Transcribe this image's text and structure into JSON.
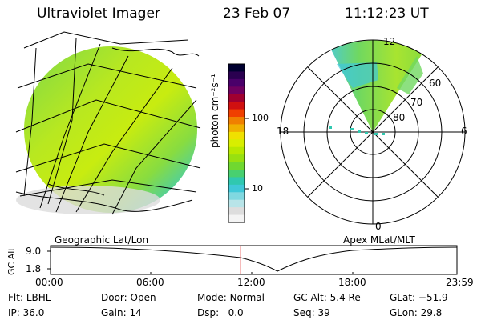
{
  "header": {
    "instrument": "Ultraviolet Imager",
    "date": "23 Feb 07",
    "time": "11:12:23 UT"
  },
  "colorbar": {
    "label": "photon cm⁻²s⁻¹",
    "ticks": [
      "100",
      "10"
    ],
    "colors": [
      "#000030",
      "#2a0050",
      "#4a006a",
      "#700060",
      "#a00030",
      "#d01010",
      "#f04000",
      "#f08000",
      "#f0b000",
      "#f0e000",
      "#d8ee00",
      "#b8e800",
      "#98e010",
      "#70d830",
      "#48d070",
      "#30c8b0",
      "#40c8d8",
      "#80d8e0",
      "#b8e4e8",
      "#dddddd",
      "#f4f4f4"
    ]
  },
  "left_panel": {
    "label": "Geographic Lat/Lon"
  },
  "polar_plot": {
    "label": "Apex MLat/MLT",
    "mlt_labels": [
      "12",
      "18",
      "6",
      "0"
    ],
    "lat_labels": [
      "60",
      "70",
      "80"
    ]
  },
  "timeline": {
    "y_label": "GC Alt",
    "y_ticks": [
      "9.0",
      "1.8"
    ],
    "x_ticks": [
      "00:00",
      "06:00",
      "12:00",
      "18:00",
      "23:59"
    ],
    "current_time_fraction": 0.467,
    "marker_color": "#e00000"
  },
  "status": {
    "filter_label": "Flt:",
    "filter_value": "LBHL",
    "ip_label": "IP:",
    "ip_value": "36.0",
    "door_label": "Door:",
    "door_value": "Open",
    "gain_label": "Gain:",
    "gain_value": "14",
    "mode_label": "Mode:",
    "mode_value": "Normal",
    "dsp_label": "Dsp:",
    "dsp_value": "0.0",
    "gcalt_label": "GC Alt:",
    "gcalt_value": "5.4 Re",
    "seq_label": "Seq:",
    "seq_value": "39",
    "glat_label": "GLat:",
    "glat_value": "−51.9",
    "glon_label": "GLon:",
    "glon_value": "29.8"
  }
}
